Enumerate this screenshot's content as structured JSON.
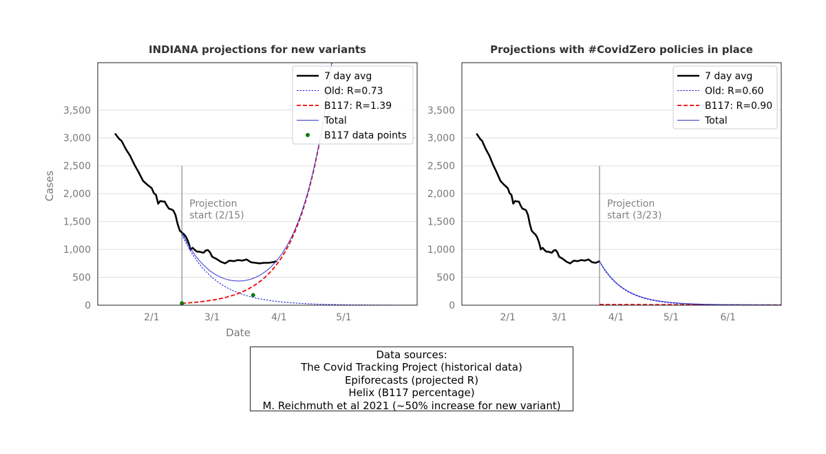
{
  "chart_data": [
    {
      "type": "line",
      "title": "INDIANA projections for new variants",
      "xlabel": "Date",
      "ylabel": "Cases",
      "ylim": [
        0,
        4350
      ],
      "x_range": [
        "2021-01-07",
        "2021-06-04"
      ],
      "x_ticks": [
        {
          "date": "2021-02-01",
          "label": "2/1"
        },
        {
          "date": "2021-03-01",
          "label": "3/1"
        },
        {
          "date": "2021-04-01",
          "label": "4/1"
        },
        {
          "date": "2021-05-01",
          "label": "5/1"
        }
      ],
      "y_ticks": [
        {
          "value": 0,
          "label": "0"
        },
        {
          "value": 500,
          "label": "500"
        },
        {
          "value": 1000,
          "label": "1,000"
        },
        {
          "value": 1500,
          "label": "1,500"
        },
        {
          "value": 2000,
          "label": "2,000"
        },
        {
          "value": 2500,
          "label": "2,500"
        },
        {
          "value": 3000,
          "label": "3,000"
        },
        {
          "value": 3500,
          "label": "3,500"
        }
      ],
      "grid": "horizontal",
      "legend_position": "top-right",
      "annotation": {
        "date": "2021-02-15",
        "lines": [
          "Projection",
          "start (2/15)"
        ]
      },
      "series": [
        {
          "name": "7 day avg",
          "style": "solid-thick",
          "color": "#000000",
          "points": [
            [
              "2021-01-15",
              3080
            ],
            [
              "2021-01-17",
              2980
            ],
            [
              "2021-01-18",
              2950
            ],
            [
              "2021-01-20",
              2800
            ],
            [
              "2021-01-22",
              2680
            ],
            [
              "2021-01-24",
              2520
            ],
            [
              "2021-01-26",
              2380
            ],
            [
              "2021-01-28",
              2230
            ],
            [
              "2021-01-30",
              2160
            ],
            [
              "2021-02-01",
              2100
            ],
            [
              "2021-02-02",
              2010
            ],
            [
              "2021-02-03",
              1980
            ],
            [
              "2021-02-04",
              1820
            ],
            [
              "2021-02-05",
              1870
            ],
            [
              "2021-02-06",
              1860
            ],
            [
              "2021-02-07",
              1860
            ],
            [
              "2021-02-08",
              1790
            ],
            [
              "2021-02-09",
              1730
            ],
            [
              "2021-02-10",
              1720
            ],
            [
              "2021-02-11",
              1700
            ],
            [
              "2021-02-12",
              1620
            ],
            [
              "2021-02-13",
              1460
            ],
            [
              "2021-02-14",
              1340
            ],
            [
              "2021-02-15",
              1300
            ],
            [
              "2021-02-16",
              1270
            ],
            [
              "2021-02-17",
              1220
            ],
            [
              "2021-02-18",
              1130
            ],
            [
              "2021-02-19",
              1000
            ],
            [
              "2021-02-20",
              1030
            ],
            [
              "2021-02-21",
              990
            ],
            [
              "2021-02-22",
              960
            ],
            [
              "2021-02-23",
              960
            ],
            [
              "2021-02-24",
              950
            ],
            [
              "2021-02-25",
              940
            ],
            [
              "2021-02-26",
              980
            ],
            [
              "2021-02-27",
              990
            ],
            [
              "2021-02-28",
              950
            ],
            [
              "2021-03-01",
              870
            ],
            [
              "2021-03-03",
              830
            ],
            [
              "2021-03-05",
              780
            ],
            [
              "2021-03-07",
              750
            ],
            [
              "2021-03-09",
              800
            ],
            [
              "2021-03-11",
              790
            ],
            [
              "2021-03-13",
              810
            ],
            [
              "2021-03-15",
              800
            ],
            [
              "2021-03-17",
              820
            ],
            [
              "2021-03-19",
              770
            ],
            [
              "2021-03-21",
              760
            ],
            [
              "2021-03-23",
              750
            ],
            [
              "2021-03-25",
              760
            ],
            [
              "2021-03-27",
              760
            ],
            [
              "2021-03-29",
              770
            ],
            [
              "2021-03-31",
              790
            ]
          ]
        },
        {
          "name": "Old: R=0.73",
          "style": "dotted",
          "color": "#2222dd",
          "model": {
            "start": "2021-02-15",
            "y0": 1270,
            "decay_per_day": 0.9355
          }
        },
        {
          "name": "B117: R=1.39",
          "style": "dashed",
          "color": "#ee0000",
          "model": {
            "start": "2021-02-15",
            "y0": 34,
            "growth_per_day": 0.06985
          }
        },
        {
          "name": "Total",
          "style": "solid-thin",
          "color": "#3333cc"
        },
        {
          "name": "B117 data points",
          "style": "points",
          "color": "#117711",
          "points": [
            [
              "2021-02-15",
              34
            ],
            [
              "2021-03-20",
              180
            ]
          ]
        }
      ]
    },
    {
      "type": "line",
      "title": "Projections with #CovidZero policies in place",
      "ylim": [
        0,
        4350
      ],
      "x_range": [
        "2021-01-07",
        "2021-06-30"
      ],
      "x_ticks": [
        {
          "date": "2021-02-01",
          "label": "2/1"
        },
        {
          "date": "2021-03-01",
          "label": "3/1"
        },
        {
          "date": "2021-04-01",
          "label": "4/1"
        },
        {
          "date": "2021-05-01",
          "label": "5/1"
        },
        {
          "date": "2021-06-01",
          "label": "6/1"
        }
      ],
      "y_ticks": [
        {
          "value": 0,
          "label": "0"
        },
        {
          "value": 500,
          "label": "500"
        },
        {
          "value": 1000,
          "label": "1,000"
        },
        {
          "value": 1500,
          "label": "1,500"
        },
        {
          "value": 2000,
          "label": "2,000"
        },
        {
          "value": 2500,
          "label": "2,500"
        },
        {
          "value": 3000,
          "label": "3,000"
        },
        {
          "value": 3500,
          "label": "3,500"
        }
      ],
      "grid": "horizontal",
      "legend_position": "top-right",
      "annotation": {
        "date": "2021-03-23",
        "lines": [
          "Projection",
          "start (3/23)"
        ]
      },
      "series": [
        {
          "name": "7 day avg",
          "style": "solid-thick",
          "color": "#000000",
          "points": [
            [
              "2021-01-15",
              3080
            ],
            [
              "2021-01-17",
              2980
            ],
            [
              "2021-01-18",
              2950
            ],
            [
              "2021-01-20",
              2800
            ],
            [
              "2021-01-22",
              2680
            ],
            [
              "2021-01-24",
              2520
            ],
            [
              "2021-01-26",
              2380
            ],
            [
              "2021-01-28",
              2230
            ],
            [
              "2021-01-30",
              2160
            ],
            [
              "2021-02-01",
              2100
            ],
            [
              "2021-02-02",
              2010
            ],
            [
              "2021-02-03",
              1980
            ],
            [
              "2021-02-04",
              1820
            ],
            [
              "2021-02-05",
              1870
            ],
            [
              "2021-02-06",
              1860
            ],
            [
              "2021-02-07",
              1860
            ],
            [
              "2021-02-08",
              1790
            ],
            [
              "2021-02-09",
              1730
            ],
            [
              "2021-02-10",
              1720
            ],
            [
              "2021-02-11",
              1700
            ],
            [
              "2021-02-12",
              1620
            ],
            [
              "2021-02-13",
              1460
            ],
            [
              "2021-02-14",
              1340
            ],
            [
              "2021-02-15",
              1300
            ],
            [
              "2021-02-16",
              1270
            ],
            [
              "2021-02-17",
              1220
            ],
            [
              "2021-02-18",
              1130
            ],
            [
              "2021-02-19",
              1000
            ],
            [
              "2021-02-20",
              1030
            ],
            [
              "2021-02-21",
              990
            ],
            [
              "2021-02-22",
              960
            ],
            [
              "2021-02-23",
              960
            ],
            [
              "2021-02-24",
              950
            ],
            [
              "2021-02-25",
              940
            ],
            [
              "2021-02-26",
              980
            ],
            [
              "2021-02-27",
              990
            ],
            [
              "2021-02-28",
              950
            ],
            [
              "2021-03-01",
              870
            ],
            [
              "2021-03-03",
              830
            ],
            [
              "2021-03-05",
              780
            ],
            [
              "2021-03-07",
              750
            ],
            [
              "2021-03-09",
              800
            ],
            [
              "2021-03-11",
              790
            ],
            [
              "2021-03-13",
              810
            ],
            [
              "2021-03-15",
              800
            ],
            [
              "2021-03-17",
              820
            ],
            [
              "2021-03-19",
              770
            ],
            [
              "2021-03-21",
              760
            ],
            [
              "2021-03-23",
              790
            ]
          ]
        },
        {
          "name": "Old: R=0.60",
          "style": "dotted",
          "color": "#2222dd",
          "model": {
            "start": "2021-03-23",
            "y0": 780,
            "decay_per_day": 0.9271
          }
        },
        {
          "name": "B117: R=0.90",
          "style": "dashed",
          "color": "#ee0000",
          "model": {
            "start": "2021-03-23",
            "y0": 12,
            "decay_per_day": 0.99
          }
        },
        {
          "name": "Total",
          "style": "solid-thin",
          "color": "#3333cc"
        }
      ]
    }
  ],
  "sources": {
    "lines": [
      "Data sources:",
      "The Covid Tracking Project (historical data)",
      "Epiforecasts (projected R)",
      "Helix (B117 percentage)",
      "M. Reichmuth et al 2021 (~50% increase for new variant)"
    ]
  }
}
